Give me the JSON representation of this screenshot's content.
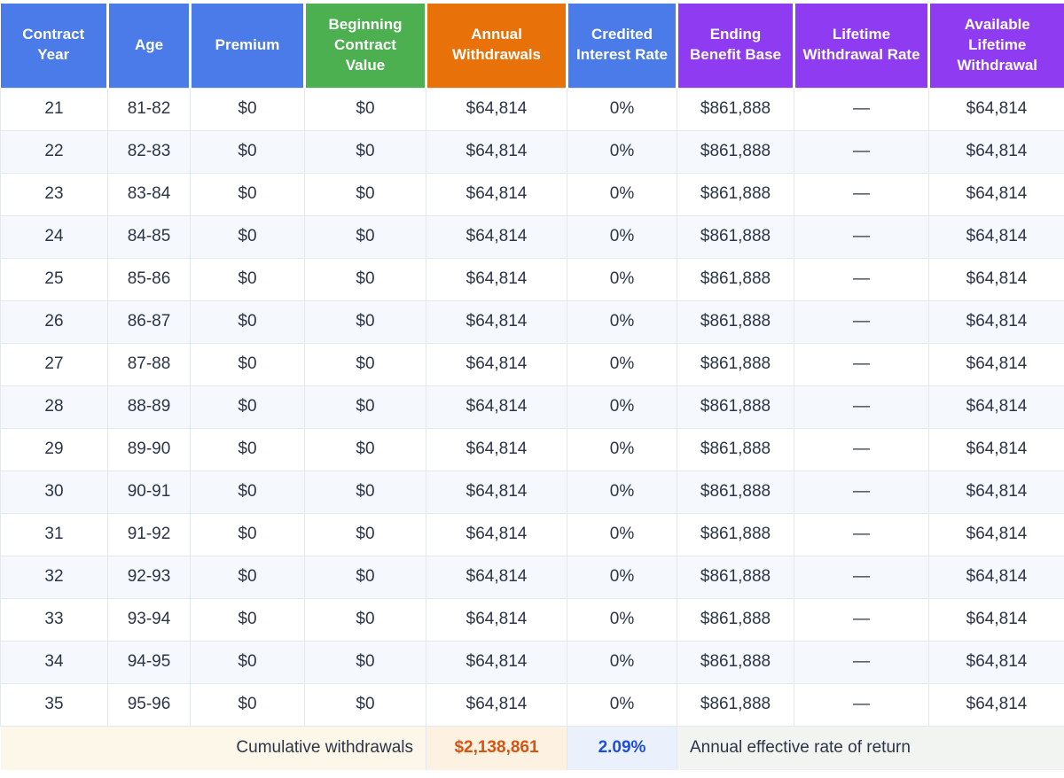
{
  "chart_data": {
    "type": "table",
    "columns": [
      {
        "id": "contract-year",
        "label": "Contract Year",
        "color": "#4b7be8"
      },
      {
        "id": "age",
        "label": "Age",
        "color": "#4b7be8"
      },
      {
        "id": "premium",
        "label": "Premium",
        "color": "#4b7be8"
      },
      {
        "id": "beginning-contract-value",
        "label": "Beginning Contract Value",
        "color": "#4caf50"
      },
      {
        "id": "annual-withdrawals",
        "label": "Annual Withdrawals",
        "color": "#e8710a"
      },
      {
        "id": "credited-interest-rate",
        "label": "Credited Interest Rate",
        "color": "#4b7be8"
      },
      {
        "id": "ending-benefit-base",
        "label": "Ending Benefit Base",
        "color": "#8e3bf2"
      },
      {
        "id": "lifetime-withdrawal-rate",
        "label": "Lifetime Withdrawal Rate",
        "color": "#8e3bf2"
      },
      {
        "id": "available-lifetime-withdrawal",
        "label": "Available Lifetime Withdrawal",
        "color": "#8e3bf2"
      }
    ],
    "rows": [
      [
        "21",
        "81-82",
        "$0",
        "$0",
        "$64,814",
        "0%",
        "$861,888",
        "—",
        "$64,814"
      ],
      [
        "22",
        "82-83",
        "$0",
        "$0",
        "$64,814",
        "0%",
        "$861,888",
        "—",
        "$64,814"
      ],
      [
        "23",
        "83-84",
        "$0",
        "$0",
        "$64,814",
        "0%",
        "$861,888",
        "—",
        "$64,814"
      ],
      [
        "24",
        "84-85",
        "$0",
        "$0",
        "$64,814",
        "0%",
        "$861,888",
        "—",
        "$64,814"
      ],
      [
        "25",
        "85-86",
        "$0",
        "$0",
        "$64,814",
        "0%",
        "$861,888",
        "—",
        "$64,814"
      ],
      [
        "26",
        "86-87",
        "$0",
        "$0",
        "$64,814",
        "0%",
        "$861,888",
        "—",
        "$64,814"
      ],
      [
        "27",
        "87-88",
        "$0",
        "$0",
        "$64,814",
        "0%",
        "$861,888",
        "—",
        "$64,814"
      ],
      [
        "28",
        "88-89",
        "$0",
        "$0",
        "$64,814",
        "0%",
        "$861,888",
        "—",
        "$64,814"
      ],
      [
        "29",
        "89-90",
        "$0",
        "$0",
        "$64,814",
        "0%",
        "$861,888",
        "—",
        "$64,814"
      ],
      [
        "30",
        "90-91",
        "$0",
        "$0",
        "$64,814",
        "0%",
        "$861,888",
        "—",
        "$64,814"
      ],
      [
        "31",
        "91-92",
        "$0",
        "$0",
        "$64,814",
        "0%",
        "$861,888",
        "—",
        "$64,814"
      ],
      [
        "32",
        "92-93",
        "$0",
        "$0",
        "$64,814",
        "0%",
        "$861,888",
        "—",
        "$64,814"
      ],
      [
        "33",
        "93-94",
        "$0",
        "$0",
        "$64,814",
        "0%",
        "$861,888",
        "—",
        "$64,814"
      ],
      [
        "34",
        "94-95",
        "$0",
        "$0",
        "$64,814",
        "0%",
        "$861,888",
        "—",
        "$64,814"
      ],
      [
        "35",
        "95-96",
        "$0",
        "$0",
        "$64,814",
        "0%",
        "$861,888",
        "—",
        "$64,814"
      ]
    ],
    "footer": {
      "cumulative_label": "Cumulative withdrawals",
      "cumulative_value": "$2,138,861",
      "cumulative_value_color": "#d9530e",
      "rate_value": "2.09%",
      "rate_value_color": "#1e4fd8",
      "rate_label": "Annual effective rate of return"
    }
  }
}
